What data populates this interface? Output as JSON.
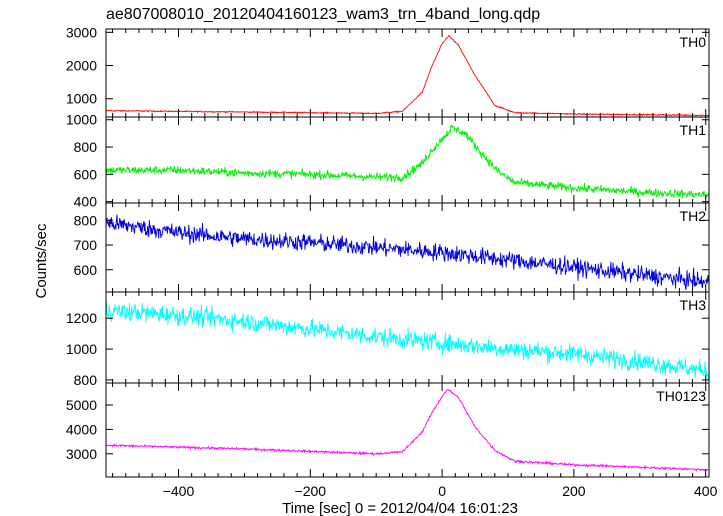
{
  "chart_data": {
    "type": "line",
    "title": "ae807008010_20120404160123_wam3_trn_4band_long.qdp",
    "xlabel": "Time [sec] 0 = 2012/04/04 16:01:23",
    "ylabel": "Counts/sec",
    "xlim": [
      -510,
      405
    ],
    "xticks": [
      -400,
      -200,
      0,
      200,
      400
    ],
    "panels": [
      {
        "name": "TH0",
        "color": "#ff0000",
        "ylim": [
          450,
          3100
        ],
        "yticks": [
          1000,
          2000,
          3000
        ],
        "noise": 18,
        "points": [
          [
            -510,
            640
          ],
          [
            -400,
            620
          ],
          [
            -300,
            600
          ],
          [
            -200,
            580
          ],
          [
            -100,
            560
          ],
          [
            -60,
            620
          ],
          [
            -30,
            1200
          ],
          [
            -15,
            2000
          ],
          [
            0,
            2650
          ],
          [
            10,
            2900
          ],
          [
            25,
            2600
          ],
          [
            50,
            1700
          ],
          [
            80,
            800
          ],
          [
            110,
            580
          ],
          [
            200,
            540
          ],
          [
            300,
            520
          ],
          [
            400,
            500
          ]
        ]
      },
      {
        "name": "TH1",
        "color": "#00ee00",
        "ylim": [
          390,
          1020
        ],
        "yticks": [
          400,
          600,
          800,
          1000
        ],
        "noise": 30,
        "points": [
          [
            -510,
            630
          ],
          [
            -400,
            630
          ],
          [
            -300,
            610
          ],
          [
            -200,
            600
          ],
          [
            -100,
            580
          ],
          [
            -60,
            580
          ],
          [
            -30,
            680
          ],
          [
            -15,
            780
          ],
          [
            0,
            860
          ],
          [
            15,
            940
          ],
          [
            35,
            900
          ],
          [
            55,
            780
          ],
          [
            85,
            620
          ],
          [
            110,
            540
          ],
          [
            200,
            500
          ],
          [
            300,
            470
          ],
          [
            400,
            450
          ]
        ]
      },
      {
        "name": "TH2",
        "color": "#0000dd",
        "ylim": [
          510,
          870
        ],
        "yticks": [
          600,
          700,
          800
        ],
        "noise": 35,
        "points": [
          [
            -510,
            790
          ],
          [
            -400,
            750
          ],
          [
            -300,
            725
          ],
          [
            -200,
            710
          ],
          [
            -100,
            690
          ],
          [
            0,
            670
          ],
          [
            100,
            640
          ],
          [
            200,
            610
          ],
          [
            300,
            580
          ],
          [
            400,
            550
          ]
        ]
      },
      {
        "name": "TH3",
        "color": "#00ffff",
        "ylim": [
          780,
          1370
        ],
        "yticks": [
          800,
          1000,
          1200
        ],
        "noise": 60,
        "points": [
          [
            -510,
            1250
          ],
          [
            -400,
            1220
          ],
          [
            -300,
            1180
          ],
          [
            -200,
            1130
          ],
          [
            -100,
            1080
          ],
          [
            0,
            1040
          ],
          [
            100,
            1000
          ],
          [
            200,
            970
          ],
          [
            300,
            920
          ],
          [
            400,
            860
          ]
        ]
      },
      {
        "name": "TH0123",
        "color": "#ff00ff",
        "ylim": [
          2050,
          5900
        ],
        "yticks": [
          3000,
          4000,
          5000
        ],
        "noise": 45,
        "points": [
          [
            -510,
            3350
          ],
          [
            -400,
            3270
          ],
          [
            -300,
            3200
          ],
          [
            -200,
            3100
          ],
          [
            -100,
            3000
          ],
          [
            -60,
            3080
          ],
          [
            -30,
            3900
          ],
          [
            -15,
            4700
          ],
          [
            0,
            5350
          ],
          [
            8,
            5650
          ],
          [
            25,
            5300
          ],
          [
            50,
            4100
          ],
          [
            80,
            3150
          ],
          [
            110,
            2700
          ],
          [
            200,
            2550
          ],
          [
            300,
            2450
          ],
          [
            400,
            2350
          ]
        ]
      }
    ]
  }
}
